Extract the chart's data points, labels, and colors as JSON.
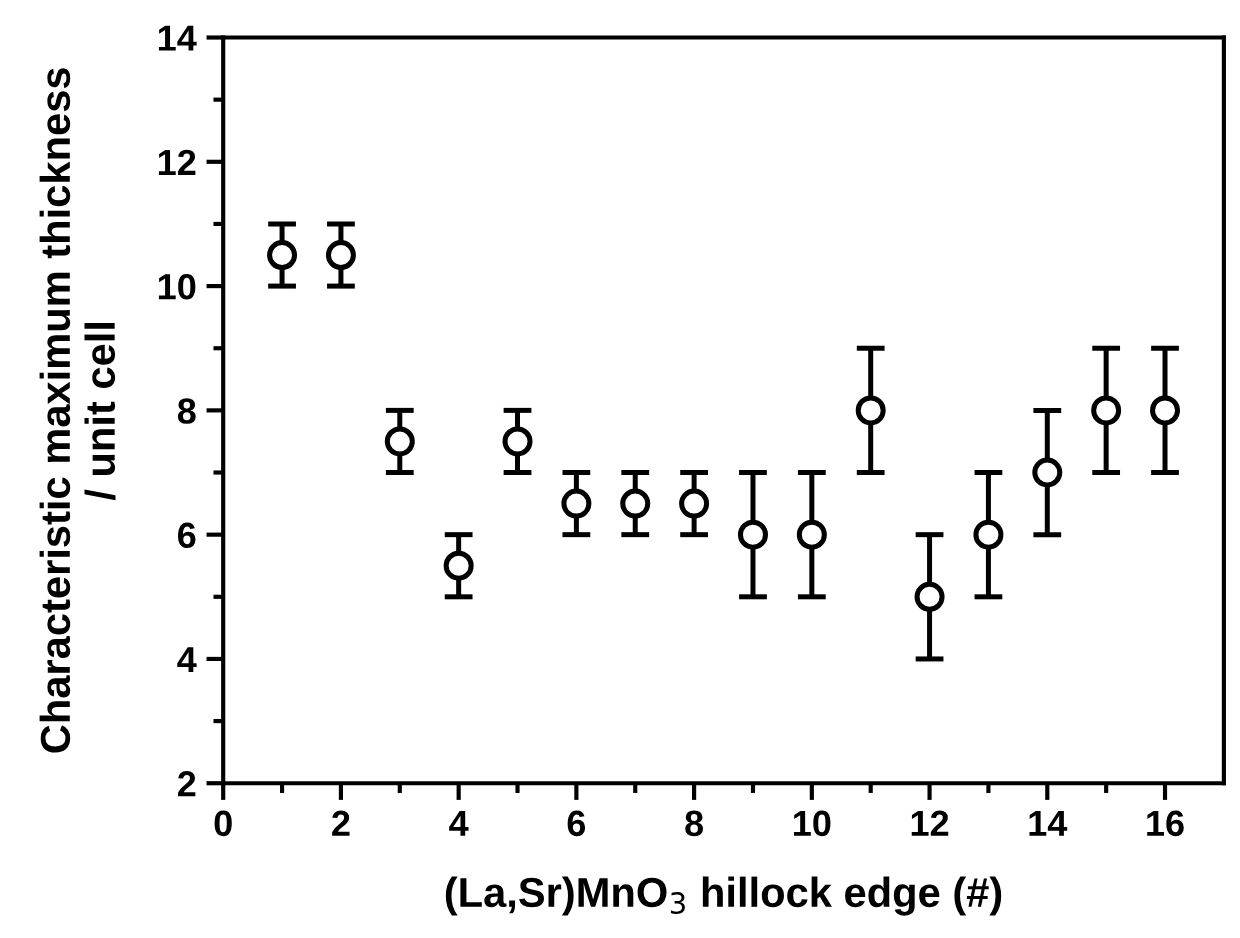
{
  "chart_data": {
    "type": "scatter",
    "xlabel": "(La,Sr)MnO$_{3}$ hillock edge (#)",
    "ylabel": "Characteristic maximum thickness\n/ unit cell",
    "x": [
      1,
      2,
      3,
      4,
      5,
      6,
      7,
      8,
      9,
      10,
      11,
      12,
      13,
      14,
      15,
      16
    ],
    "series": [
      {
        "color": "#000000",
        "values": [
          10.5,
          10.5,
          7.5,
          5.5,
          7.5,
          6.5,
          6.5,
          6.5,
          6,
          6,
          8,
          5,
          6,
          7,
          8,
          8
        ],
        "errors": [
          0.5,
          0.5,
          0.5,
          0.5,
          0.5,
          0.5,
          0.5,
          0.5,
          1,
          1,
          1,
          1,
          1,
          1,
          1,
          1
        ]
      }
    ],
    "marker": "circle",
    "grid": false,
    "legend": false,
    "xlim": [
      0,
      17
    ],
    "xticks": [
      0,
      {
        "value": 1,
        "label": null
      },
      2,
      {
        "value": 3,
        "label": null
      },
      4,
      {
        "value": 5,
        "label": null
      },
      6,
      {
        "value": 7,
        "label": null
      },
      8,
      {
        "value": 9,
        "label": null
      },
      10,
      {
        "value": 11,
        "label": null
      },
      12,
      {
        "value": 13,
        "label": null
      },
      14,
      {
        "value": 15,
        "label": null
      },
      16
    ],
    "ylim": [
      2,
      14
    ],
    "yticks": [
      2,
      {
        "value": 3,
        "label": null
      },
      4,
      {
        "value": 5,
        "label": null
      },
      6,
      {
        "value": 7,
        "label": null
      },
      8,
      {
        "value": 9,
        "label": null
      },
      10,
      {
        "value": 11,
        "label": null
      },
      12,
      {
        "value": 13,
        "label": null
      },
      14
    ]
  }
}
